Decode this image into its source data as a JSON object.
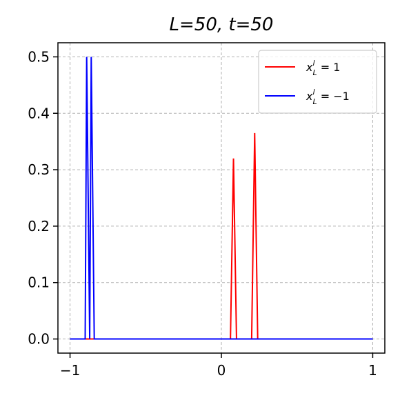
{
  "chart_data": {
    "type": "line",
    "title": "L=50, t=50",
    "xlabel": "",
    "ylabel": "",
    "xlim": [
      -1.08,
      1.08
    ],
    "ylim": [
      -0.025,
      0.525
    ],
    "x_ticks": [
      -1,
      0,
      1
    ],
    "x_tick_labels": [
      "−1",
      "0",
      "1"
    ],
    "y_ticks": [
      0.0,
      0.1,
      0.2,
      0.3,
      0.4,
      0.5
    ],
    "y_tick_labels": [
      "0.0",
      "0.1",
      "0.2",
      "0.3",
      "0.4",
      "0.5"
    ],
    "grid": true,
    "legend_position": "top-right",
    "series": [
      {
        "name": "x_L^l = 1",
        "legend": {
          "base": "x",
          "sub": "L",
          "sup": "l",
          "rest": " = 1"
        },
        "color": "#ff0000",
        "x": [
          -1.0,
          0.06,
          0.08,
          0.1,
          0.2,
          0.22,
          0.24,
          1.0
        ],
        "y": [
          0.0,
          0.0,
          0.32,
          0.0,
          0.0,
          0.365,
          0.0,
          0.0
        ]
      },
      {
        "name": "x_L^l = −1",
        "legend": {
          "base": "x",
          "sub": "L",
          "sup": "l",
          "rest": " = −1"
        },
        "color": "#0000ff",
        "x": [
          -1.0,
          -0.9,
          -0.89,
          -0.87,
          -0.86,
          -0.84,
          1.0
        ],
        "y": [
          0.0,
          0.0,
          0.5,
          0.0,
          0.5,
          0.0,
          0.0
        ]
      }
    ]
  }
}
